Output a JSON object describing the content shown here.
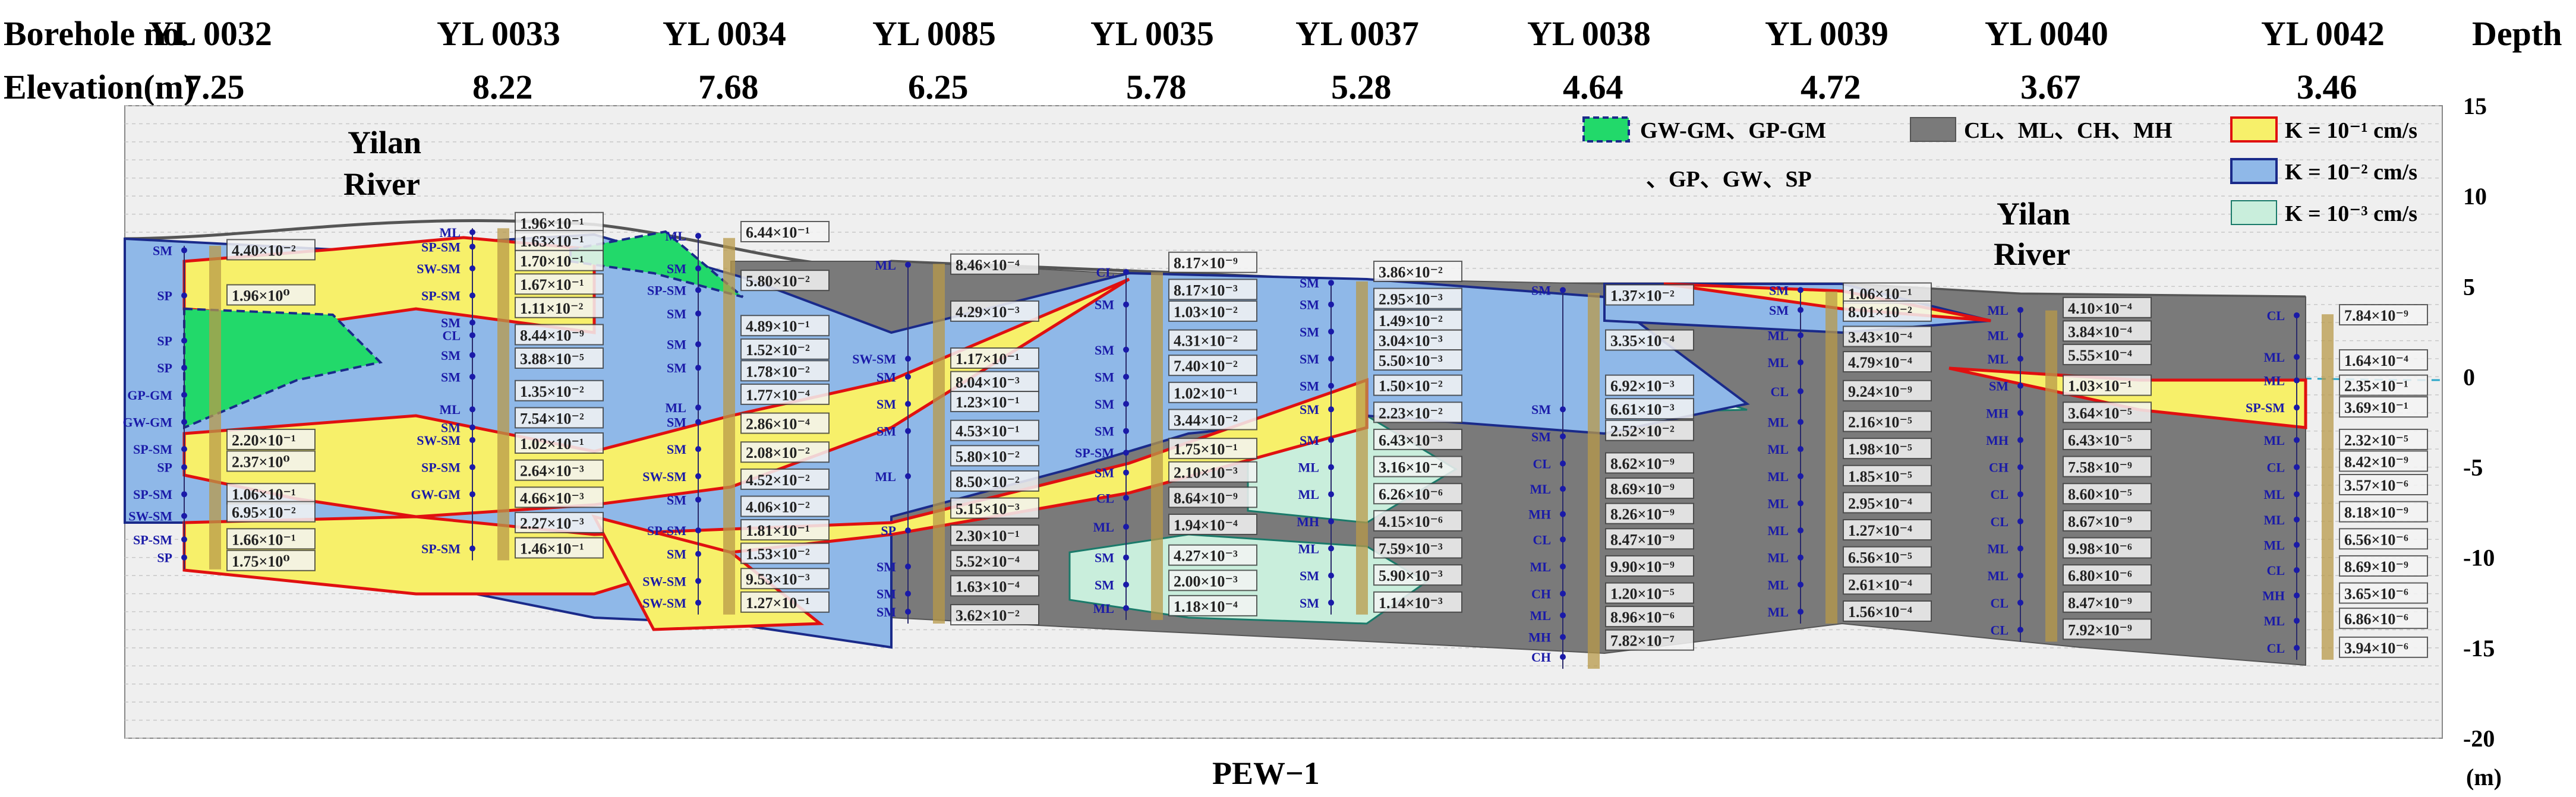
{
  "header": {
    "borehole_label": "Borehole no.",
    "elevation_label": "Elevation(m)",
    "depth_label": "Depth",
    "unit_label": "(m)"
  },
  "figure_title": "PEW−1",
  "depth_axis": {
    "ticks": [
      "15",
      "10",
      "5",
      "0",
      "-5",
      "-10",
      "-15",
      "-20"
    ],
    "range": [
      15,
      -20
    ]
  },
  "boreholes": [
    {
      "id": "YL 0032",
      "elev": "7.25"
    },
    {
      "id": "YL 0033",
      "elev": "8.22"
    },
    {
      "id": "YL 0034",
      "elev": "7.68"
    },
    {
      "id": "YL 0085",
      "elev": "6.25"
    },
    {
      "id": "YL 0035",
      "elev": "5.78"
    },
    {
      "id": "YL 0037",
      "elev": "5.28"
    },
    {
      "id": "YL 0038",
      "elev": "4.64"
    },
    {
      "id": "YL 0039",
      "elev": "4.72"
    },
    {
      "id": "YL 0040",
      "elev": "3.67"
    },
    {
      "id": "YL 0042",
      "elev": "3.46"
    }
  ],
  "river_labels": [
    {
      "line1": "Yilan",
      "line2": "River"
    },
    {
      "line1": "Yilan",
      "line2": "River"
    }
  ],
  "legend": {
    "gravel": "GW-GM、GP-GM",
    "gravel2": "、GP、GW、SP",
    "clay": "CL、ML、CH、MH",
    "k1": "K = 10⁻¹ cm/s",
    "k2": "K = 10⁻² cm/s",
    "k3": "K = 10⁻³ cm/s"
  },
  "colors": {
    "gravel": "#22d96a",
    "clay": "#7a7a7a",
    "k1": "#f7f06a",
    "k2": "#8fb8e8",
    "k3": "#c9eedc",
    "outline_red": "#e01010",
    "outline_blue": "#1a2a8a",
    "outline_teal": "#1a7a6a"
  },
  "logs": [
    {
      "soils": [
        [
          "SM",
          7
        ],
        [
          "SP",
          4.5
        ],
        [
          "SP",
          2
        ],
        [
          "SP",
          0.5
        ],
        [
          "GP-GM",
          -1
        ],
        [
          "GW-GM",
          -2.5
        ],
        [
          "SP-SM",
          -4
        ],
        [
          "SP",
          -5
        ],
        [
          "SP-SM",
          -6.5
        ],
        [
          "SW-SM",
          -7.7
        ],
        [
          "SP-SM",
          -9
        ],
        [
          "SP",
          -10
        ]
      ],
      "kvals": [
        [
          "4.40×10⁻²",
          7
        ],
        [
          "1.96×10⁰",
          4.5
        ],
        [
          "2.20×10⁻¹",
          -3.5
        ],
        [
          "2.37×10⁰",
          -4.7
        ],
        [
          "1.06×10⁻¹",
          -6.5
        ],
        [
          "6.95×10⁻²",
          -7.5
        ],
        [
          "1.66×10⁻¹",
          -9
        ],
        [
          "1.75×10⁰",
          -10.2
        ]
      ]
    },
    {
      "soils": [
        [
          "ML",
          8
        ],
        [
          "SP-SM",
          7.2
        ],
        [
          "SW-SM",
          6
        ],
        [
          "SP-SM",
          4.5
        ],
        [
          "SM",
          3
        ],
        [
          "CL",
          2.3
        ],
        [
          "SM",
          1.2
        ],
        [
          "SM",
          0
        ],
        [
          "ML",
          -1.8
        ],
        [
          "SM",
          -2.8
        ],
        [
          "SW-SM",
          -3.5
        ],
        [
          "SP-SM",
          -5
        ],
        [
          "GW-GM",
          -6.5
        ],
        [
          "SP-SM",
          -9.5
        ]
      ],
      "kvals": [
        [
          "1.96×10⁻¹",
          8.5
        ],
        [
          "1.63×10⁻¹",
          7.5
        ],
        [
          "1.70×10⁻¹",
          6.4
        ],
        [
          "1.67×10⁻¹",
          5.1
        ],
        [
          "1.11×10⁻²",
          3.8
        ],
        [
          "8.44×10⁻⁹",
          2.3
        ],
        [
          "3.88×10⁻⁵",
          1
        ],
        [
          "1.35×10⁻²",
          -0.8
        ],
        [
          "7.54×10⁻²",
          -2.3
        ],
        [
          "1.02×10⁻¹",
          -3.7
        ],
        [
          "2.64×10⁻³",
          -5.2
        ],
        [
          "4.66×10⁻³",
          -6.7
        ],
        [
          "2.27×10⁻³",
          -8.1
        ],
        [
          "1.46×10⁻¹",
          -9.5
        ]
      ]
    },
    {
      "soils": [
        [
          "ML",
          7.8
        ],
        [
          "SM",
          6
        ],
        [
          "SP-SM",
          4.8
        ],
        [
          "SM",
          3.5
        ],
        [
          "SM",
          1.8
        ],
        [
          "SM",
          0.5
        ],
        [
          "ML",
          -1.7
        ],
        [
          "SM",
          -2.5
        ],
        [
          "SM",
          -4
        ],
        [
          "SW-SM",
          -5.5
        ],
        [
          "SM",
          -6.8
        ],
        [
          "SP-SM",
          -8.5
        ],
        [
          "SM",
          -9.8
        ],
        [
          "SW-SM",
          -11.3
        ],
        [
          "SW-SM",
          -12.5
        ]
      ],
      "kvals": [
        [
          "6.44×10⁻¹",
          8
        ],
        [
          "5.80×10⁻²",
          5.3
        ],
        [
          "4.89×10⁻¹",
          2.8
        ],
        [
          "1.52×10⁻²",
          1.5
        ],
        [
          "1.78×10⁻²",
          0.3
        ],
        [
          "1.77×10⁻⁴",
          -1
        ],
        [
          "2.86×10⁻⁴",
          -2.6
        ],
        [
          "2.08×10⁻²",
          -4.2
        ],
        [
          "4.52×10⁻²",
          -5.7
        ],
        [
          "4.06×10⁻²",
          -7.2
        ],
        [
          "1.81×10⁻¹",
          -8.5
        ],
        [
          "1.53×10⁻²",
          -9.8
        ],
        [
          "9.53×10⁻³",
          -11.2
        ],
        [
          "1.27×10⁻¹",
          -12.5
        ]
      ]
    },
    {
      "soils": [
        [
          "ML",
          6.2
        ],
        [
          "SW-SM",
          1
        ],
        [
          "SM",
          0
        ],
        [
          "SM",
          -1.5
        ],
        [
          "SM",
          -3
        ],
        [
          "ML",
          -5.5
        ],
        [
          "SP",
          -8.5
        ],
        [
          "SM",
          -10.5
        ],
        [
          "SM",
          -12
        ],
        [
          "SM",
          -13
        ]
      ],
      "kvals": [
        [
          "8.46×10⁻⁴",
          6.2
        ],
        [
          "4.29×10⁻³",
          3.6
        ],
        [
          "1.17×10⁻¹",
          1
        ],
        [
          "8.04×10⁻³",
          -0.3
        ],
        [
          "1.23×10⁻¹",
          -1.4
        ],
        [
          "4.53×10⁻¹",
          -3
        ],
        [
          "5.80×10⁻²",
          -4.4
        ],
        [
          "8.50×10⁻²",
          -5.8
        ],
        [
          "5.15×10⁻³",
          -7.3
        ],
        [
          "2.30×10⁻¹",
          -8.8
        ],
        [
          "5.52×10⁻⁴",
          -10.2
        ],
        [
          "1.63×10⁻⁴",
          -11.6
        ],
        [
          "3.62×10⁻²",
          -13.2
        ]
      ]
    },
    {
      "soils": [
        [
          "CL",
          5.8
        ],
        [
          "SM",
          4
        ],
        [
          "SM",
          1.5
        ],
        [
          "SM",
          0
        ],
        [
          "SM",
          -1.5
        ],
        [
          "SM",
          -3
        ],
        [
          "SP-SM",
          -4.2
        ],
        [
          "SM",
          -5.3
        ],
        [
          "CL",
          -6.7
        ],
        [
          "ML",
          -8.3
        ],
        [
          "SM",
          -10
        ],
        [
          "SM",
          -11.5
        ],
        [
          "ML",
          -12.8
        ]
      ],
      "kvals": [
        [
          "8.17×10⁻⁹",
          6.3
        ],
        [
          "8.17×10⁻³",
          4.8
        ],
        [
          "1.03×10⁻²",
          3.6
        ],
        [
          "4.31×10⁻²",
          2
        ],
        [
          "7.40×10⁻²",
          0.6
        ],
        [
          "1.02×10⁻¹",
          -0.9
        ],
        [
          "3.44×10⁻²",
          -2.4
        ],
        [
          "1.75×10⁻¹",
          -4
        ],
        [
          "2.10×10⁻³",
          -5.3
        ],
        [
          "8.64×10⁻⁹",
          -6.7
        ],
        [
          "1.94×10⁻⁴",
          -8.2
        ],
        [
          "4.27×10⁻³",
          -9.9
        ],
        [
          "2.00×10⁻³",
          -11.3
        ],
        [
          "1.18×10⁻⁴",
          -12.7
        ]
      ]
    },
    {
      "soils": [
        [
          "SM",
          5.2
        ],
        [
          "SM",
          4
        ],
        [
          "SM",
          2.5
        ],
        [
          "SM",
          1
        ],
        [
          "SM",
          -0.5
        ],
        [
          "SM",
          -1.8
        ],
        [
          "SM",
          -3.5
        ],
        [
          "ML",
          -5
        ],
        [
          "ML",
          -6.5
        ],
        [
          "MH",
          -8
        ],
        [
          "ML",
          -9.5
        ],
        [
          "SM",
          -11
        ],
        [
          "SM",
          -12.5
        ]
      ],
      "kvals": [
        [
          "3.86×10⁻²",
          5.8
        ],
        [
          "2.95×10⁻³",
          4.3
        ],
        [
          "1.49×10⁻²",
          3.1
        ],
        [
          "3.04×10⁻³",
          2
        ],
        [
          "5.50×10⁻³",
          0.9
        ],
        [
          "1.50×10⁻²",
          -0.5
        ],
        [
          "2.23×10⁻²",
          -2
        ],
        [
          "6.43×10⁻³",
          -3.5
        ],
        [
          "3.16×10⁻⁴",
          -5
        ],
        [
          "6.26×10⁻⁶",
          -6.5
        ],
        [
          "4.15×10⁻⁶",
          -8
        ],
        [
          "7.59×10⁻³",
          -9.5
        ],
        [
          "5.90×10⁻³",
          -11
        ],
        [
          "1.14×10⁻³",
          -12.5
        ]
      ]
    },
    {
      "soils": [
        [
          "SM",
          4.8
        ],
        [
          "SM",
          -1.8
        ],
        [
          "SM",
          -3.3
        ],
        [
          "CL",
          -4.8
        ],
        [
          "ML",
          -6.2
        ],
        [
          "MH",
          -7.6
        ],
        [
          "CL",
          -9
        ],
        [
          "ML",
          -10.5
        ],
        [
          "CH",
          -12
        ],
        [
          "ML",
          -13.2
        ],
        [
          "MH",
          -14.4
        ],
        [
          "CH",
          -15.5
        ]
      ],
      "kvals": [
        [
          "1.37×10⁻²",
          4.5
        ],
        [
          "3.35×10⁻⁴",
          2
        ],
        [
          "6.92×10⁻³",
          -0.5
        ],
        [
          "6.61×10⁻³",
          -1.8
        ],
        [
          "2.52×10⁻²",
          -3
        ],
        [
          "8.62×10⁻⁹",
          -4.8
        ],
        [
          "8.69×10⁻⁹",
          -6.2
        ],
        [
          "8.26×10⁻⁹",
          -7.6
        ],
        [
          "8.47×10⁻⁹",
          -9
        ],
        [
          "9.90×10⁻⁹",
          -10.5
        ],
        [
          "1.20×10⁻⁵",
          -12
        ],
        [
          "8.96×10⁻⁶",
          -13.3
        ],
        [
          "7.82×10⁻⁷",
          -14.6
        ]
      ]
    },
    {
      "soils": [
        [
          "SM",
          4.8
        ],
        [
          "SM",
          3.7
        ],
        [
          "ML",
          2.3
        ],
        [
          "ML",
          0.8
        ],
        [
          "CL",
          -0.8
        ],
        [
          "ML",
          -2.5
        ],
        [
          "ML",
          -4
        ],
        [
          "ML",
          -5.5
        ],
        [
          "ML",
          -7
        ],
        [
          "ML",
          -8.5
        ],
        [
          "ML",
          -10
        ],
        [
          "ML",
          -11.5
        ],
        [
          "ML",
          -13
        ]
      ],
      "kvals": [
        [
          "1.06×10⁻¹",
          4.6
        ],
        [
          "8.01×10⁻²",
          3.6
        ],
        [
          "3.43×10⁻⁴",
          2.2
        ],
        [
          "4.79×10⁻⁴",
          0.8
        ],
        [
          "9.24×10⁻⁹",
          -0.8
        ],
        [
          "2.16×10⁻⁵",
          -2.5
        ],
        [
          "1.98×10⁻⁵",
          -4
        ],
        [
          "1.85×10⁻⁵",
          -5.5
        ],
        [
          "2.95×10⁻⁴",
          -7
        ],
        [
          "1.27×10⁻⁴",
          -8.5
        ],
        [
          "6.56×10⁻⁵",
          -10
        ],
        [
          "2.61×10⁻⁴",
          -11.5
        ],
        [
          "1.56×10⁻⁴",
          -13
        ]
      ]
    },
    {
      "soils": [
        [
          "ML",
          3.7
        ],
        [
          "ML",
          2.3
        ],
        [
          "ML",
          1
        ],
        [
          "SM",
          -0.5
        ],
        [
          "MH",
          -2
        ],
        [
          "MH",
          -3.5
        ],
        [
          "CH",
          -5
        ],
        [
          "CL",
          -6.5
        ],
        [
          "CL",
          -8
        ],
        [
          "ML",
          -9.5
        ],
        [
          "ML",
          -11
        ],
        [
          "CL",
          -12.5
        ],
        [
          "CL",
          -14
        ]
      ],
      "kvals": [
        [
          "4.10×10⁻⁴",
          3.8
        ],
        [
          "3.84×10⁻⁴",
          2.5
        ],
        [
          "5.55×10⁻⁴",
          1.2
        ],
        [
          "1.03×10⁻¹",
          -0.5
        ],
        [
          "3.64×10⁻⁵",
          -2
        ],
        [
          "6.43×10⁻⁵",
          -3.5
        ],
        [
          "7.58×10⁻⁹",
          -5
        ],
        [
          "8.60×10⁻⁵",
          -6.5
        ],
        [
          "8.67×10⁻⁹",
          -8
        ],
        [
          "9.98×10⁻⁶",
          -9.5
        ],
        [
          "6.80×10⁻⁶",
          -11
        ],
        [
          "8.47×10⁻⁹",
          -12.5
        ],
        [
          "7.92×10⁻⁹",
          -14
        ]
      ]
    },
    {
      "soils": [
        [
          "CL",
          3.4
        ],
        [
          "ML",
          1.1
        ],
        [
          "ML",
          -0.2
        ],
        [
          "SP-SM",
          -1.7
        ],
        [
          "ML",
          -3.5
        ],
        [
          "CL",
          -5
        ],
        [
          "ML",
          -6.5
        ],
        [
          "ML",
          -7.9
        ],
        [
          "ML",
          -9.3
        ],
        [
          "CL",
          -10.7
        ],
        [
          "MH",
          -12.1
        ],
        [
          "ML",
          -13.5
        ],
        [
          "CL",
          -15
        ]
      ],
      "kvals": [
        [
          "7.84×10⁻⁹",
          3.4
        ],
        [
          "1.64×10⁻⁴",
          0.9
        ],
        [
          "2.35×10⁻¹",
          -0.5
        ],
        [
          "3.69×10⁻¹",
          -1.7
        ],
        [
          "2.32×10⁻⁵",
          -3.5
        ],
        [
          "8.42×10⁻⁹",
          -4.7
        ],
        [
          "3.57×10⁻⁶",
          -6
        ],
        [
          "8.18×10⁻⁹",
          -7.5
        ],
        [
          "6.56×10⁻⁶",
          -9
        ],
        [
          "8.69×10⁻⁹",
          -10.5
        ],
        [
          "3.65×10⁻⁶",
          -12
        ],
        [
          "6.86×10⁻⁶",
          -13.4
        ],
        [
          "3.94×10⁻⁶",
          -15
        ]
      ]
    }
  ]
}
